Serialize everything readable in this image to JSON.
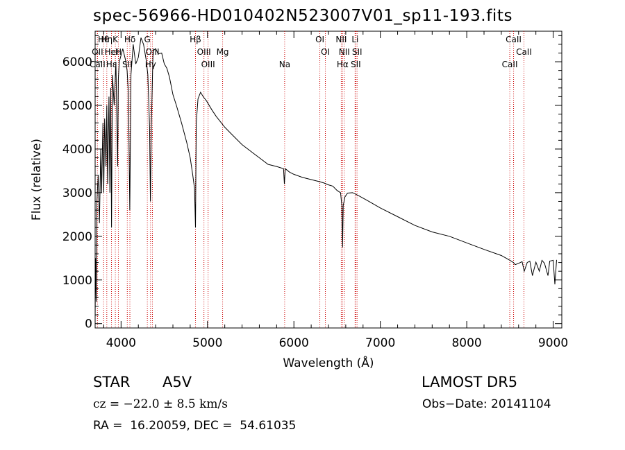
{
  "chart_data": {
    "type": "line",
    "title": "spec-56966-HD010402N523007V01_sp11-193.fits",
    "xlabel": "Wavelength (Å)",
    "ylabel": "Flux (relative)",
    "xlim": [
      3700,
      9100
    ],
    "ylim": [
      -100,
      6700
    ],
    "xticks": [
      4000,
      5000,
      6000,
      7000,
      8000,
      9000
    ],
    "yticks": [
      0,
      1000,
      2000,
      3000,
      4000,
      5000,
      6000
    ],
    "grid": false,
    "series": [
      {
        "x": [
          3700,
          3705,
          3712,
          3720,
          3735,
          3750,
          3765,
          3775,
          3790,
          3800,
          3810,
          3825,
          3835,
          3845,
          3860,
          3870,
          3880,
          3890,
          3900,
          3920,
          3940,
          3960,
          3968,
          3980,
          4000,
          4020,
          4050,
          4070,
          4085,
          4101,
          4115,
          4140,
          4170,
          4200,
          4230,
          4260,
          4290,
          4310,
          4330,
          4340,
          4350,
          4370,
          4400,
          4430,
          4470,
          4500,
          4530,
          4560,
          4600,
          4640,
          4700,
          4760,
          4800,
          4830,
          4850,
          4861,
          4870,
          4890,
          4920,
          4950,
          4990,
          5050,
          5100,
          5200,
          5300,
          5400,
          5500,
          5600,
          5700,
          5800,
          5880,
          5890,
          5900,
          5950,
          6000,
          6100,
          6200,
          6300,
          6350,
          6400,
          6450,
          6500,
          6540,
          6555,
          6563,
          6570,
          6590,
          6620,
          6680,
          6750,
          6850,
          7000,
          7200,
          7400,
          7600,
          7800,
          8000,
          8200,
          8400,
          8500,
          8540,
          8560,
          8600,
          8640,
          8665,
          8700,
          8730,
          8760,
          8800,
          8840,
          8870,
          8900,
          8940,
          8960,
          9000,
          9020,
          9040
        ],
        "y": [
          100,
          1500,
          500,
          2800,
          3400,
          2300,
          4000,
          3000,
          4600,
          3000,
          4700,
          3600,
          5000,
          3200,
          5200,
          3000,
          5400,
          2200,
          5700,
          5000,
          6000,
          3600,
          5600,
          6000,
          6150,
          6300,
          6050,
          5800,
          5300,
          2600,
          5700,
          6400,
          5950,
          6100,
          6550,
          6400,
          6050,
          5700,
          4500,
          2800,
          4500,
          6250,
          6300,
          6180,
          6200,
          5950,
          5850,
          5650,
          5250,
          5000,
          4600,
          4150,
          3800,
          3400,
          3100,
          2200,
          4600,
          5150,
          5300,
          5200,
          5100,
          4900,
          4750,
          4500,
          4300,
          4100,
          3950,
          3800,
          3650,
          3600,
          3550,
          3200,
          3550,
          3470,
          3420,
          3350,
          3300,
          3250,
          3220,
          3180,
          3150,
          3050,
          3000,
          2700,
          1750,
          2700,
          2900,
          2990,
          3000,
          2930,
          2820,
          2650,
          2450,
          2250,
          2100,
          2000,
          1850,
          1700,
          1560,
          1450,
          1400,
          1350,
          1380,
          1420,
          1200,
          1400,
          1430,
          1100,
          1410,
          1200,
          1450,
          1380,
          1100,
          1430,
          1450,
          900,
          1460
        ]
      }
    ],
    "lines": [
      {
        "label": "Hθ",
        "x": 3798
      },
      {
        "label": "OII",
        "x": 3727
      },
      {
        "label": "CaII",
        "x": 3727
      },
      {
        "label": "Hη",
        "x": 3835
      },
      {
        "label": "HeI",
        "x": 3889
      },
      {
        "label": "Hε",
        "x": 3889
      },
      {
        "label": "K",
        "x": 3934
      },
      {
        "label": "H",
        "x": 3969
      },
      {
        "label": "SII",
        "x": 4072
      },
      {
        "label": "Hδ",
        "x": 4102
      },
      {
        "label": "OIII",
        "x": 4363
      },
      {
        "label": "Hγ",
        "x": 4341
      },
      {
        "label": "G",
        "x": 4304
      },
      {
        "label": "OIII",
        "x": 4959
      },
      {
        "label": "OIII",
        "x": 5007
      },
      {
        "label": "Hβ",
        "x": 4861
      },
      {
        "label": "Mg",
        "x": 5175
      },
      {
        "label": "Na",
        "x": 5893
      },
      {
        "label": "OI",
        "x": 6300
      },
      {
        "label": "OI",
        "x": 6364
      },
      {
        "label": "Hα",
        "x": 6563
      },
      {
        "label": "NII",
        "x": 6548
      },
      {
        "label": "NII",
        "x": 6583
      },
      {
        "label": "SII",
        "x": 6716
      },
      {
        "label": "Li",
        "x": 6708
      },
      {
        "label": "SII",
        "x": 6731
      },
      {
        "label": "CaII",
        "x": 8498
      },
      {
        "label": "CaII",
        "x": 8542
      },
      {
        "label": "CaII",
        "x": 8662
      }
    ]
  },
  "info": {
    "star_class": "STAR",
    "spectral_type": "A5V",
    "survey": "LAMOST DR5",
    "redshift": "cz = −22.0 ± 8.5 km/s",
    "obs_date": "Obs−Date: 20141104",
    "coords": "RA =  16.20059, DEC =  54.61035"
  },
  "colors": {
    "spectrum": "#000000",
    "lines": "#cc0000",
    "axes": "#000000"
  }
}
